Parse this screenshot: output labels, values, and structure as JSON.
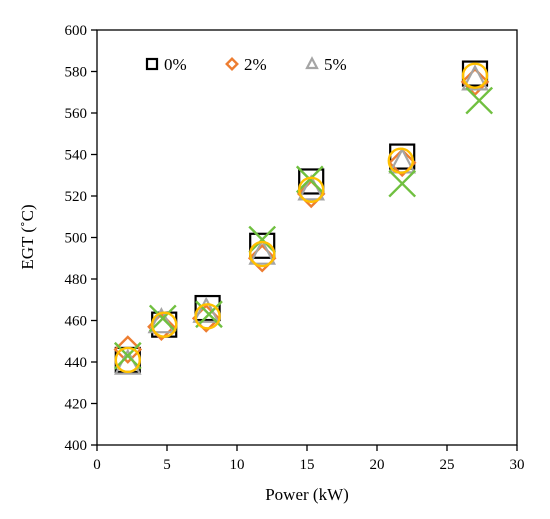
{
  "chart_data": {
    "type": "scatter",
    "title": "",
    "xlabel": "Power (kW)",
    "ylabel": "EGT (˚C)",
    "xlim": [
      0,
      30
    ],
    "ylim": [
      400,
      600
    ],
    "x_ticks": [
      0,
      5,
      10,
      15,
      20,
      25,
      30
    ],
    "y_ticks": [
      400,
      420,
      440,
      460,
      480,
      500,
      520,
      540,
      560,
      580,
      600
    ],
    "grid": false,
    "legend_position": "top-left",
    "series": [
      {
        "name": "0%",
        "marker": "square",
        "color": "#000000",
        "x": [
          2.2,
          4.8,
          7.9,
          11.8,
          15.3,
          21.8,
          27.0
        ],
        "y": [
          441,
          458,
          466,
          496,
          527,
          539,
          579
        ],
        "in_legend": true
      },
      {
        "name": "2%",
        "marker": "diamond",
        "color": "#ED7D31",
        "x": [
          2.2,
          4.6,
          7.8,
          11.8,
          15.3,
          21.8,
          27.0
        ],
        "y": [
          446,
          457,
          461,
          490,
          521,
          536,
          575
        ],
        "in_legend": true
      },
      {
        "name": "5%",
        "marker": "triangle",
        "color": "#A5A5A5",
        "x": [
          2.2,
          4.6,
          7.8,
          11.8,
          15.3,
          21.8,
          27.0
        ],
        "y": [
          439,
          459,
          464,
          492,
          523,
          536,
          576
        ],
        "in_legend": true
      },
      {
        "marker": "x",
        "color": "#70C040",
        "x": [
          2.2,
          4.7,
          8.0,
          11.8,
          15.2,
          21.8,
          27.3
        ],
        "y": [
          443,
          461,
          463,
          499,
          528,
          526,
          566
        ],
        "in_legend": false
      },
      {
        "marker": "circle",
        "color": "#FFC000",
        "x": [
          2.2,
          4.8,
          7.9,
          11.8,
          15.3,
          21.7,
          27.0
        ],
        "y": [
          441,
          458,
          462,
          492,
          523,
          537,
          578
        ],
        "in_legend": false
      }
    ]
  }
}
